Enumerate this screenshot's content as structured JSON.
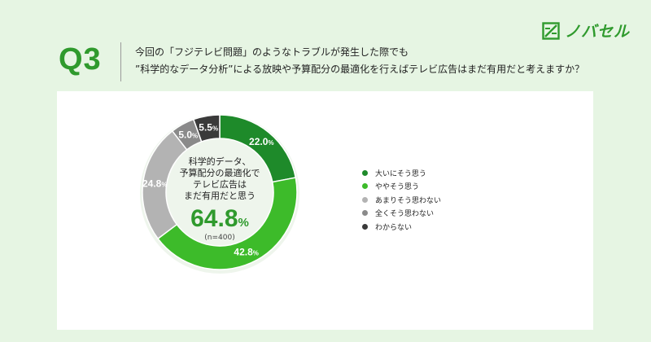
{
  "brand": {
    "name": "ノバセル",
    "color": "#2f9a2d"
  },
  "question": {
    "number": "Q3",
    "line1": "今回の「フジテレビ問題」のようなトラブルが発生した際でも",
    "line2": "”科学的なデータ分析”による放映や予算配分の最適化を行えばテレビ広告はまだ有用だと考えますか？"
  },
  "center": {
    "line1": "科学的データ、",
    "line2": "予算配分の最適化で",
    "line3": "テレビ広告は",
    "line4": "まだ有用だと思う",
    "value": "64.8",
    "unit": "%",
    "n": "(n=400)"
  },
  "chart_data": {
    "type": "pie",
    "style": "donut",
    "categories": [
      "大いにそう思う",
      "ややそう思う",
      "あまりそう思わない",
      "全くそう思わない",
      "わからない"
    ],
    "values": [
      22.0,
      42.8,
      24.8,
      5.0,
      5.5
    ],
    "value_unit": "%",
    "value_labels": [
      "22.0",
      "42.8",
      "24.8",
      "5.0",
      "5.5"
    ],
    "colors": [
      "#1e8a2a",
      "#3dbb2a",
      "#b3b3b3",
      "#8a8a8a",
      "#3a3a3a"
    ],
    "label_colors": [
      "#ffffff",
      "#ffffff",
      "#ffffff",
      "#ffffff",
      "#ffffff"
    ],
    "legend_position": "right",
    "start_angle": "top",
    "direction": "clockwise"
  }
}
